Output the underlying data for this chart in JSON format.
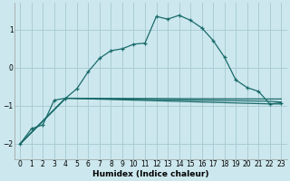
{
  "xlabel": "Humidex (Indice chaleur)",
  "bg_color": "#cce8ee",
  "grid_color": "#aaccd4",
  "line_color": "#1a6b6b",
  "xlim": [
    -0.5,
    23.5
  ],
  "ylim": [
    -2.4,
    1.7
  ],
  "x_ticks": [
    0,
    1,
    2,
    3,
    4,
    5,
    6,
    7,
    8,
    9,
    10,
    11,
    12,
    13,
    14,
    15,
    16,
    17,
    18,
    19,
    20,
    21,
    22,
    23
  ],
  "y_ticks": [
    -2,
    -1,
    0,
    1
  ],
  "curve_x": [
    0,
    1,
    2,
    3,
    4,
    5,
    6,
    7,
    8,
    9,
    10,
    11,
    12,
    13,
    14,
    15,
    16,
    17,
    18,
    19,
    20,
    21,
    22,
    23
  ],
  "curve_y": [
    -2.0,
    -1.6,
    -1.5,
    -0.85,
    -0.8,
    -0.55,
    -0.1,
    0.25,
    0.45,
    0.5,
    0.62,
    0.65,
    1.35,
    1.28,
    1.38,
    1.25,
    1.05,
    0.72,
    0.28,
    -0.32,
    -0.52,
    -0.62,
    -0.95,
    -0.92
  ],
  "line1_x": [
    0,
    4,
    22,
    23
  ],
  "line1_y": [
    -2.0,
    -0.8,
    -0.95,
    -0.95
  ],
  "line2_x": [
    0,
    4,
    22,
    23
  ],
  "line2_y": [
    -2.0,
    -0.8,
    -0.88,
    -0.9
  ],
  "line3_x": [
    0,
    4,
    22,
    23
  ],
  "line3_y": [
    -2.0,
    -0.8,
    -0.82,
    -0.82
  ]
}
